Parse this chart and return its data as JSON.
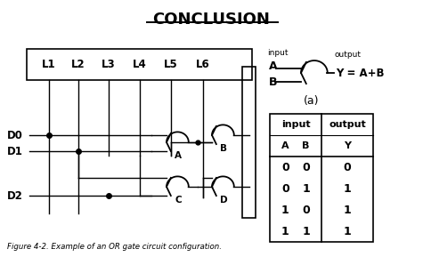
{
  "title": "CONCLUSION",
  "title_fontsize": 13,
  "background_color": "#ffffff",
  "figure_caption": "Figure 4-2. Example of an OR gate circuit configuration.",
  "label_L": [
    "L1",
    "L2",
    "L3",
    "L4",
    "L5",
    "L6"
  ],
  "label_D": [
    "D0",
    "D1",
    "D2"
  ],
  "gate_labels": [
    "A",
    "B",
    "C",
    "D"
  ],
  "symbol_input_label": "input",
  "symbol_output_label": "output",
  "symbol_inputs": [
    "A",
    "B"
  ],
  "symbol_output_eq": "Y = A+B",
  "symbol_sub_label": "(a)",
  "table_header_input": "input",
  "table_header_ab": "A  B",
  "table_header_output": "output",
  "table_header_y": "Y",
  "table_rows": [
    [
      "0",
      "0",
      "0"
    ],
    [
      "0",
      "1",
      "1"
    ],
    [
      "1",
      "0",
      "1"
    ],
    [
      "1",
      "1",
      "1"
    ]
  ],
  "text_color": "#000000",
  "line_color": "#000000"
}
